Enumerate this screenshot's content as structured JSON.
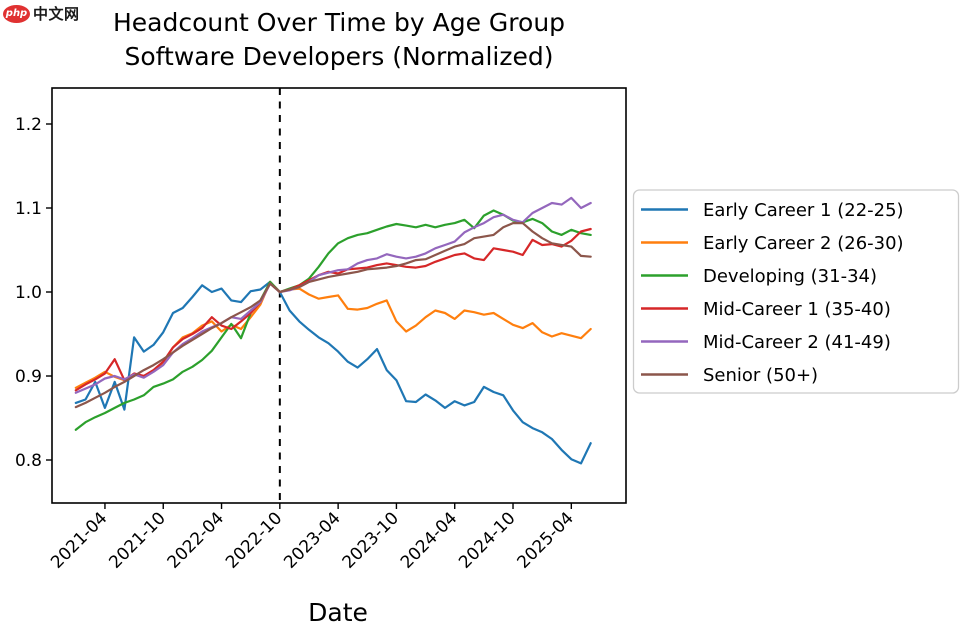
{
  "logo": {
    "badge": "php",
    "suffix": "中文网"
  },
  "title": {
    "line1": "Headcount Over Time by Age Group",
    "line2": "Software Developers (Normalized)"
  },
  "chart_data": {
    "type": "line",
    "title": "Headcount Over Time by Age Group Software Developers (Normalized)",
    "xlabel": "Date",
    "ylabel": "",
    "ylim": [
      0.749,
      1.243
    ],
    "yticks": [
      "0.8",
      "0.9",
      "1.0",
      "1.1",
      "1.2"
    ],
    "xtick_labels": [
      "2021-04",
      "2021-10",
      "2022-04",
      "2022-10",
      "2023-04",
      "2023-10",
      "2024-04",
      "2024-10",
      "2025-04"
    ],
    "x_months": [
      "2021-01",
      "2021-02",
      "2021-03",
      "2021-04",
      "2021-05",
      "2021-06",
      "2021-07",
      "2021-08",
      "2021-09",
      "2021-10",
      "2021-11",
      "2021-12",
      "2022-01",
      "2022-02",
      "2022-03",
      "2022-04",
      "2022-05",
      "2022-06",
      "2022-07",
      "2022-08",
      "2022-09",
      "2022-10",
      "2022-11",
      "2022-12",
      "2023-01",
      "2023-02",
      "2023-03",
      "2023-04",
      "2023-05",
      "2023-06",
      "2023-07",
      "2023-08",
      "2023-09",
      "2023-10",
      "2023-11",
      "2023-12",
      "2024-01",
      "2024-02",
      "2024-03",
      "2024-04",
      "2024-05",
      "2024-06",
      "2024-07",
      "2024-08",
      "2024-09",
      "2024-10",
      "2024-11",
      "2024-12",
      "2025-01",
      "2025-02",
      "2025-03",
      "2025-04",
      "2025-05",
      "2025-06"
    ],
    "normalization_vline": {
      "x": "2022-10",
      "style": "dashed",
      "color": "#000000"
    },
    "grid": false,
    "legend_position": "right-outside",
    "series": [
      {
        "name": "Early Career 1 (22-25)",
        "color": "#1f77b4",
        "values": [
          0.868,
          0.872,
          0.893,
          0.862,
          0.893,
          0.86,
          0.946,
          0.929,
          0.937,
          0.952,
          0.975,
          0.981,
          0.994,
          1.008,
          1.0,
          1.004,
          0.99,
          0.988,
          1.001,
          1.003,
          1.012,
          1.0,
          0.978,
          0.965,
          0.955,
          0.946,
          0.939,
          0.929,
          0.917,
          0.91,
          0.92,
          0.932,
          0.907,
          0.895,
          0.87,
          0.869,
          0.878,
          0.871,
          0.862,
          0.87,
          0.865,
          0.869,
          0.887,
          0.881,
          0.877,
          0.859,
          0.845,
          0.838,
          0.833,
          0.825,
          0.812,
          0.801,
          0.796,
          0.82
        ]
      },
      {
        "name": "Early Career 2 (26-30)",
        "color": "#ff7f0e",
        "values": [
          0.886,
          0.892,
          0.898,
          0.905,
          0.899,
          0.895,
          0.902,
          0.899,
          0.906,
          0.916,
          0.934,
          0.946,
          0.951,
          0.96,
          0.965,
          0.953,
          0.961,
          0.956,
          0.97,
          0.985,
          1.012,
          1.0,
          1.003,
          1.004,
          0.997,
          0.992,
          0.994,
          0.996,
          0.98,
          0.979,
          0.981,
          0.986,
          0.99,
          0.965,
          0.953,
          0.96,
          0.97,
          0.978,
          0.975,
          0.968,
          0.978,
          0.976,
          0.973,
          0.975,
          0.968,
          0.961,
          0.957,
          0.963,
          0.952,
          0.947,
          0.951,
          0.948,
          0.945,
          0.956
        ]
      },
      {
        "name": "Developing (31-34)",
        "color": "#2ca02c",
        "values": [
          0.836,
          0.845,
          0.851,
          0.856,
          0.862,
          0.868,
          0.872,
          0.877,
          0.887,
          0.891,
          0.896,
          0.905,
          0.911,
          0.919,
          0.93,
          0.946,
          0.962,
          0.945,
          0.975,
          0.99,
          1.012,
          1.0,
          1.004,
          1.008,
          1.016,
          1.03,
          1.046,
          1.058,
          1.064,
          1.068,
          1.07,
          1.074,
          1.078,
          1.081,
          1.079,
          1.077,
          1.08,
          1.077,
          1.08,
          1.082,
          1.086,
          1.076,
          1.091,
          1.097,
          1.092,
          1.085,
          1.083,
          1.087,
          1.082,
          1.072,
          1.068,
          1.074,
          1.07,
          1.068
        ]
      },
      {
        "name": "Mid-Career 1 (35-40)",
        "color": "#d62728",
        "values": [
          0.883,
          0.89,
          0.896,
          0.903,
          0.92,
          0.895,
          0.903,
          0.9,
          0.907,
          0.917,
          0.934,
          0.944,
          0.95,
          0.957,
          0.97,
          0.96,
          0.956,
          0.965,
          0.975,
          0.988,
          1.01,
          1.0,
          1.003,
          1.008,
          1.014,
          1.02,
          1.024,
          1.022,
          1.027,
          1.028,
          1.029,
          1.032,
          1.034,
          1.032,
          1.03,
          1.029,
          1.031,
          1.036,
          1.04,
          1.044,
          1.046,
          1.04,
          1.038,
          1.052,
          1.05,
          1.048,
          1.044,
          1.062,
          1.056,
          1.057,
          1.054,
          1.061,
          1.072,
          1.075
        ]
      },
      {
        "name": "Mid-Career 2 (41-49)",
        "color": "#9467bd",
        "values": [
          0.88,
          0.885,
          0.89,
          0.897,
          0.9,
          0.896,
          0.902,
          0.898,
          0.905,
          0.913,
          0.928,
          0.938,
          0.945,
          0.953,
          0.958,
          0.963,
          0.97,
          0.968,
          0.978,
          0.988,
          1.01,
          1.0,
          1.002,
          1.006,
          1.012,
          1.02,
          1.023,
          1.026,
          1.027,
          1.034,
          1.038,
          1.04,
          1.045,
          1.042,
          1.04,
          1.042,
          1.046,
          1.052,
          1.056,
          1.06,
          1.071,
          1.077,
          1.082,
          1.089,
          1.092,
          1.086,
          1.083,
          1.094,
          1.1,
          1.106,
          1.104,
          1.112,
          1.1,
          1.106
        ]
      },
      {
        "name": "Senior (50+)",
        "color": "#8c564b",
        "values": [
          0.863,
          0.868,
          0.874,
          0.88,
          0.887,
          0.893,
          0.9,
          0.907,
          0.913,
          0.92,
          0.928,
          0.936,
          0.943,
          0.95,
          0.957,
          0.963,
          0.97,
          0.976,
          0.982,
          0.99,
          1.01,
          1.0,
          1.003,
          1.006,
          1.012,
          1.015,
          1.018,
          1.02,
          1.022,
          1.024,
          1.027,
          1.028,
          1.029,
          1.031,
          1.034,
          1.038,
          1.039,
          1.044,
          1.049,
          1.054,
          1.057,
          1.064,
          1.066,
          1.068,
          1.077,
          1.082,
          1.082,
          1.072,
          1.064,
          1.058,
          1.056,
          1.054,
          1.043,
          1.042
        ]
      }
    ]
  }
}
